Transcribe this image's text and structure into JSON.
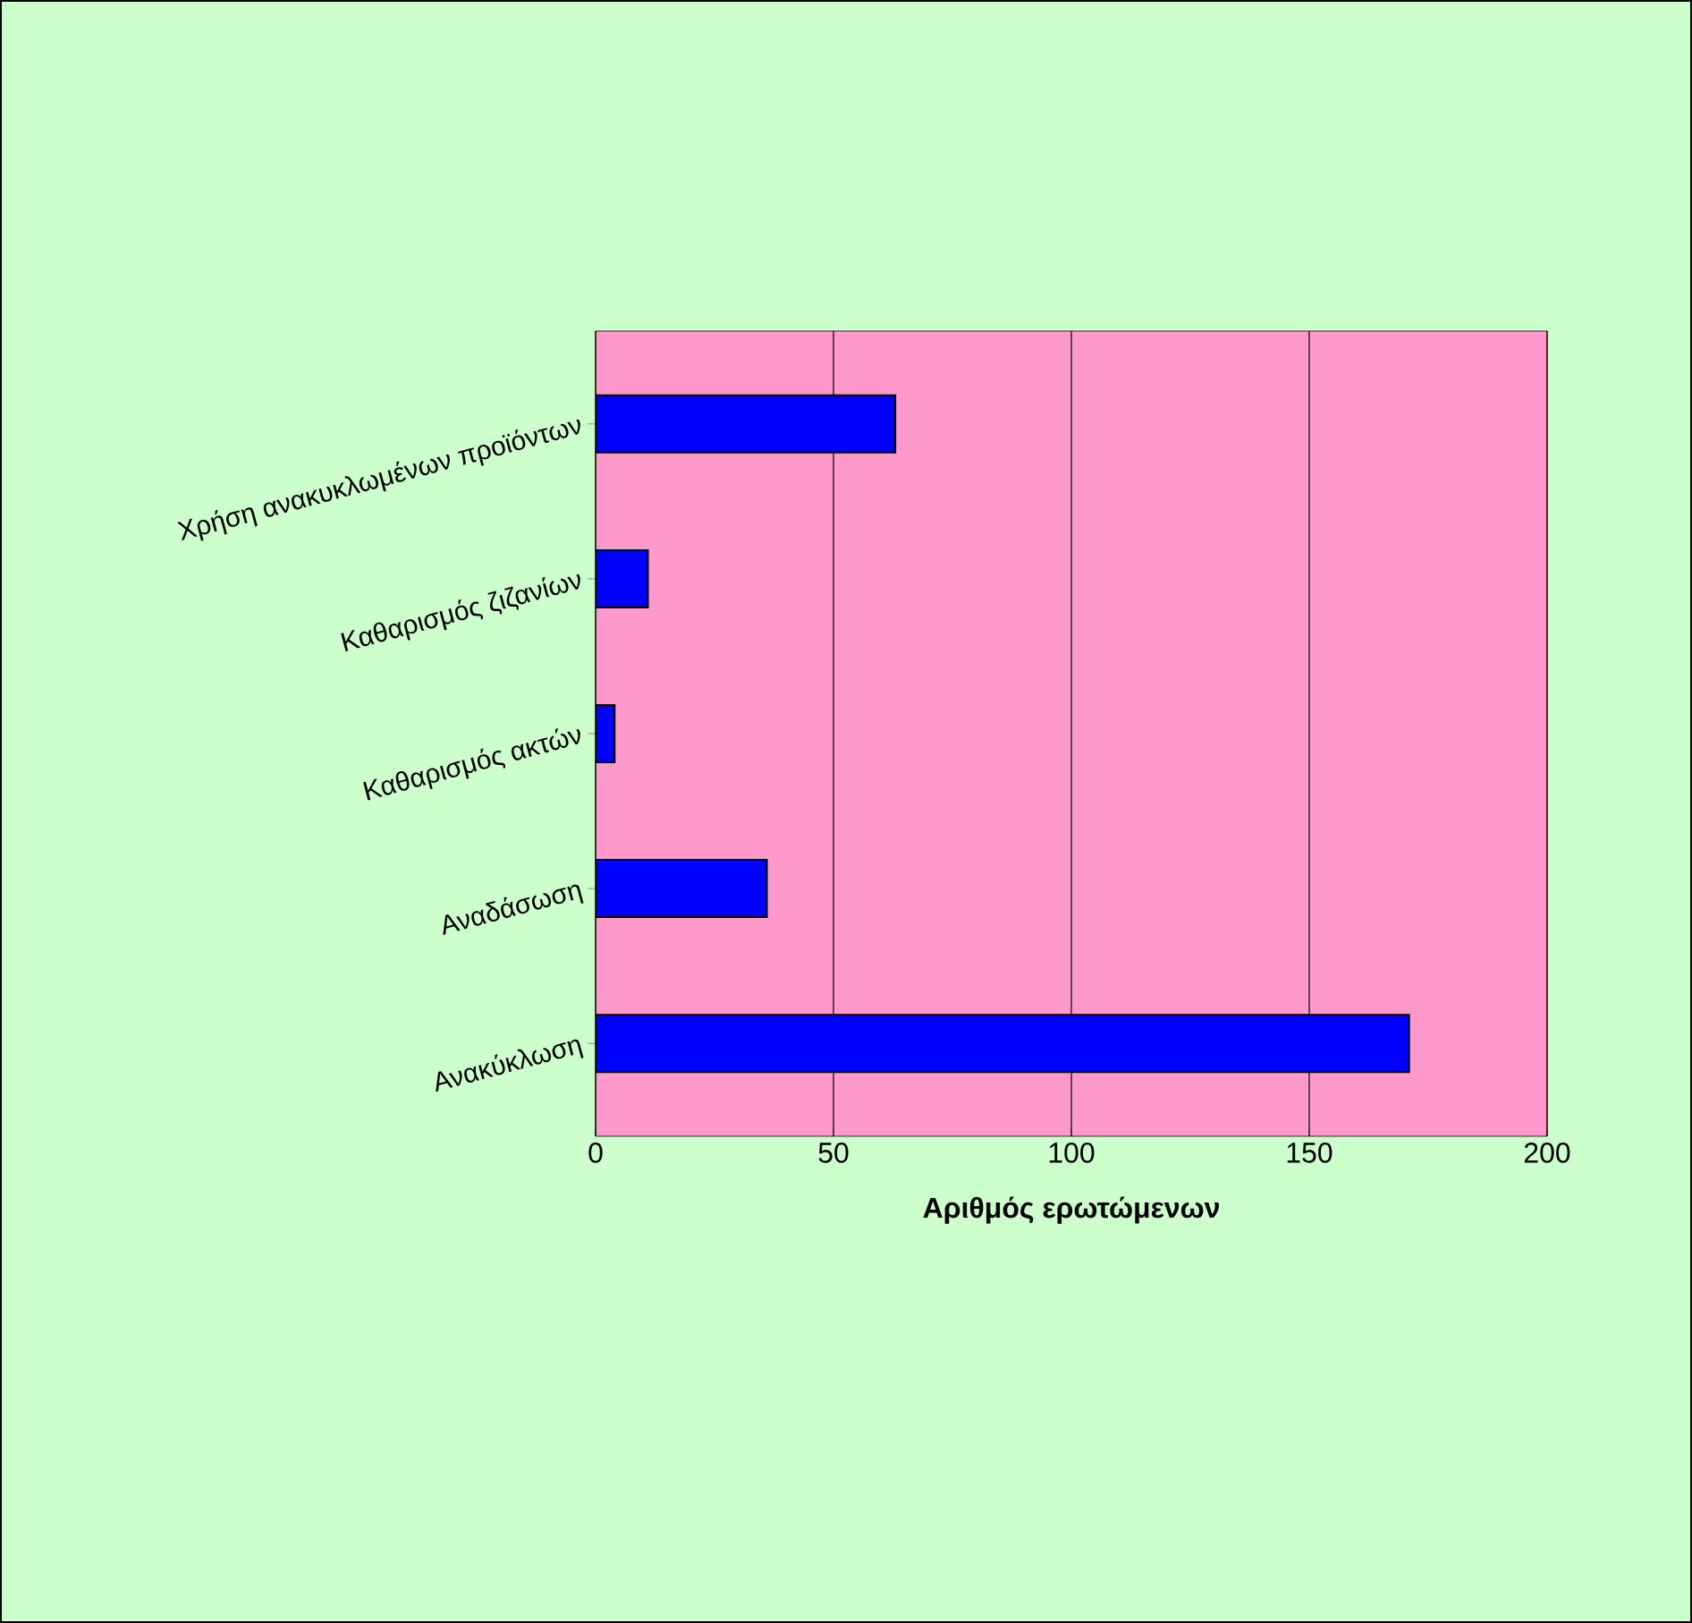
{
  "chart_data": {
    "type": "bar",
    "orientation": "horizontal",
    "xlabel": "Αριθμός ερωτώμενων",
    "categories": [
      "Χρήση ανακυκλωμένων προϊόντων",
      "Καθαρισμός ζιζανίων",
      "Καθαρισμός ακτών",
      "Αναδάσωση",
      "Ανακύκλωση"
    ],
    "values": [
      63,
      11,
      4,
      36,
      171
    ],
    "color": "#0000ff",
    "xlim": [
      0,
      200
    ],
    "xticks": [
      0,
      50,
      100,
      150,
      200
    ],
    "grid": "x"
  }
}
